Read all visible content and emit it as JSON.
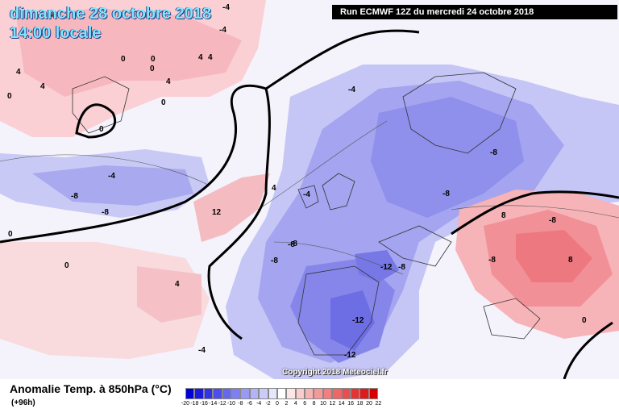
{
  "header": {
    "date": "dimanche 28 octobre 2018",
    "time": "14:00 locale",
    "run": "Run ECMWF 12Z du mercredi 24 octobre 2018"
  },
  "map": {
    "copyright": "Copyright 2018 Meteociel.fr",
    "isotherm_labels": [
      "-4",
      "-4",
      "-4",
      "0",
      "0",
      "0",
      "0",
      "4",
      "4",
      "4",
      "4",
      "4",
      "0",
      "0",
      "-4",
      "-8",
      "-8",
      "-4",
      "-8",
      "-8",
      "-8",
      "-8",
      "-12",
      "-8",
      "-12",
      "-12",
      "-8",
      "-8",
      "-8",
      "8",
      "8",
      "12",
      "4",
      "0",
      "0",
      "-4",
      "0",
      "-4",
      "4"
    ]
  },
  "footer": {
    "title": "Anomalie Temp. à 850hPa (°C)",
    "forecast": "(+96h)"
  },
  "legend": {
    "ticks": [
      "-20",
      "-18",
      "-16",
      "-14",
      "-12",
      "-10",
      "-8",
      "-6",
      "-4",
      "-2",
      "0",
      "2",
      "4",
      "6",
      "8",
      "10",
      "12",
      "14",
      "16",
      "18",
      "20",
      "22"
    ],
    "colors": [
      "#0000d6",
      "#1a1adf",
      "#3333e6",
      "#4d4dea",
      "#6666ee",
      "#7f7ff1",
      "#9999f4",
      "#b3b3f7",
      "#ccccfa",
      "#e6e6fc",
      "#ffffff",
      "#fce6e6",
      "#facccc",
      "#f7b3b3",
      "#f49999",
      "#f17f7f",
      "#ee6666",
      "#ea4d4d",
      "#e63333",
      "#df1a1a",
      "#d60000"
    ]
  }
}
